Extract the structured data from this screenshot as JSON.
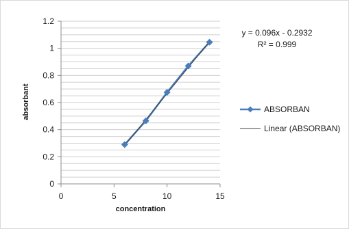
{
  "chart_data": {
    "type": "scatter",
    "xlabel": "concentration",
    "ylabel": "absorbant",
    "xlim": [
      0,
      15
    ],
    "ylim": [
      0,
      1.2
    ],
    "x_ticks": [
      "0",
      "5",
      "10",
      "15"
    ],
    "y_ticks": [
      "0",
      "0.2",
      "0.4",
      "0.6",
      "0.8",
      "1",
      "1.2"
    ],
    "grid": "horizontal",
    "legend": "right",
    "series": [
      {
        "name": "ABSORBAN",
        "x": [
          6,
          8,
          10,
          12,
          14
        ],
        "y": [
          0.29,
          0.465,
          0.675,
          0.87,
          1.045
        ],
        "color": "#4a7ebb",
        "marker": "diamond"
      }
    ],
    "trendline": {
      "name": "Linear (ABSORBAN)",
      "slope": 0.096,
      "intercept": -0.2932,
      "color": "#404040"
    },
    "annotations": {
      "equation": "y = 0.096x - 0.2932",
      "r_squared": "R² = 0.999"
    }
  }
}
